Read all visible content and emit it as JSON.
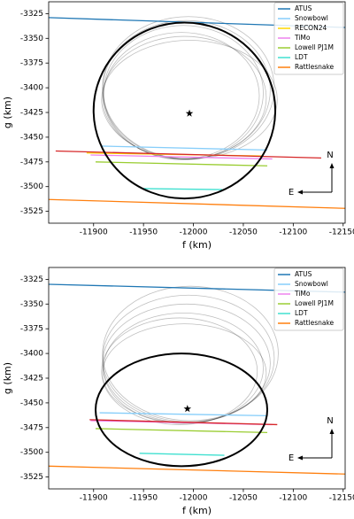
{
  "chart_data": [
    {
      "type": "occultation",
      "xlabel": "f (km)",
      "ylabel": "g (km)",
      "xlim": [
        -11855,
        -12152
      ],
      "ylim": [
        -3537,
        -3313
      ],
      "xticks": [
        -11900,
        -11950,
        -12000,
        -12050,
        -12100,
        -12150
      ],
      "yticks": [
        -3325,
        -3350,
        -3375,
        -3400,
        -3425,
        -3450,
        -3475,
        -3500,
        -3525
      ],
      "legend": "upper right",
      "series": [
        {
          "name": "ATUS",
          "color": "#1f77b4",
          "x": [
            -11855,
            -12152
          ],
          "y": [
            -3329,
            -3339
          ]
        },
        {
          "name": "Snowbowl",
          "color": "#87cefa",
          "x": [
            -11907,
            -12074
          ],
          "y": [
            -3459,
            -3463
          ]
        },
        {
          "name": "RECON24",
          "color": "#ffd700",
          "x": [
            -11893,
            -12070
          ],
          "y": [
            -3466,
            -3469
          ]
        },
        {
          "name": "TiMo",
          "color": "#ee82ee",
          "x": [
            -11897,
            -12079
          ],
          "y": [
            -3468,
            -3472
          ]
        },
        {
          "color": "#d62728",
          "x": [
            -11862,
            -12128
          ],
          "y": [
            -3464,
            -3471
          ]
        },
        {
          "name": "Lowell PJ1M",
          "color": "#9acd32",
          "x": [
            -11902,
            -12074
          ],
          "y": [
            -3475,
            -3479
          ]
        },
        {
          "name": "LDT",
          "color": "#40e0d0",
          "x": [
            -11949,
            -12029
          ],
          "y": [
            -3502,
            -3503
          ]
        },
        {
          "name": "Rattlesnake",
          "color": "#ff7f0e",
          "x": [
            -11855,
            -12152
          ],
          "y": [
            -3513,
            -3522
          ]
        }
      ],
      "fits": [
        {
          "f": -11990,
          "g": -3405,
          "rf": 80,
          "rg": 68
        },
        {
          "f": -11993,
          "g": -3402,
          "rf": 84,
          "rg": 70
        },
        {
          "f": -11988,
          "g": -3408,
          "rf": 78,
          "rg": 64
        },
        {
          "f": -11995,
          "g": -3400,
          "rf": 86,
          "rg": 72
        },
        {
          "f": -11991,
          "g": -3410,
          "rf": 82,
          "rg": 62
        },
        {
          "f": -11996,
          "g": -3412,
          "rf": 88,
          "rg": 60
        }
      ],
      "best_fit": {
        "f": -11991,
        "g": -3423,
        "rf": 91,
        "rg": 89
      },
      "star": {
        "f": -11996,
        "g": -3426
      },
      "compass": {
        "north": "N",
        "east": "E"
      }
    },
    {
      "type": "occultation",
      "xlabel": "f (km)",
      "ylabel": "g (km)",
      "xlim": [
        -11855,
        -12152
      ],
      "ylim": [
        -3537,
        -3313
      ],
      "xticks": [
        -11900,
        -11950,
        -12000,
        -12050,
        -12100,
        -12150
      ],
      "yticks": [
        -3325,
        -3350,
        -3375,
        -3400,
        -3425,
        -3450,
        -3475,
        -3500,
        -3525
      ],
      "legend": "upper right",
      "series": [
        {
          "name": "ATUS",
          "color": "#1f77b4",
          "x": [
            -11855,
            -12152
          ],
          "y": [
            -3330,
            -3338
          ]
        },
        {
          "name": "Snowbowl",
          "color": "#87cefa",
          "x": [
            -11906,
            -12074
          ],
          "y": [
            -3460,
            -3463
          ]
        },
        {
          "name": "TiMo",
          "color": "#ee82ee",
          "x": [
            -11897,
            -12079
          ],
          "y": [
            -3468,
            -3472
          ]
        },
        {
          "color": "#d62728",
          "x": [
            -11896,
            -12084
          ],
          "y": [
            -3467,
            -3472
          ]
        },
        {
          "name": "Lowell PJ1M",
          "color": "#9acd32",
          "x": [
            -11902,
            -12074
          ],
          "y": [
            -3476,
            -3480
          ]
        },
        {
          "name": "LDT",
          "color": "#40e0d0",
          "x": [
            -11946,
            -12031
          ],
          "y": [
            -3501,
            -3503
          ]
        },
        {
          "name": "Rattlesnake",
          "color": "#ff7f0e",
          "x": [
            -11855,
            -12152
          ],
          "y": [
            -3514,
            -3522
          ]
        }
      ],
      "fits": [
        {
          "f": -11990,
          "g": -3415,
          "rf": 80,
          "rg": 56
        },
        {
          "f": -11993,
          "g": -3410,
          "rf": 84,
          "rg": 60
        },
        {
          "f": -11986,
          "g": -3418,
          "rf": 78,
          "rg": 54
        },
        {
          "f": -11995,
          "g": -3405,
          "rf": 86,
          "rg": 64
        },
        {
          "f": -11991,
          "g": -3420,
          "rf": 82,
          "rg": 50
        },
        {
          "f": -11997,
          "g": -3400,
          "rf": 88,
          "rg": 68
        }
      ],
      "best_fit": {
        "f": -11988,
        "g": -3457,
        "rf": 86,
        "rg": 57
      },
      "star": {
        "f": -11994,
        "g": -3456
      },
      "compass": {
        "north": "N",
        "east": "E"
      }
    }
  ]
}
